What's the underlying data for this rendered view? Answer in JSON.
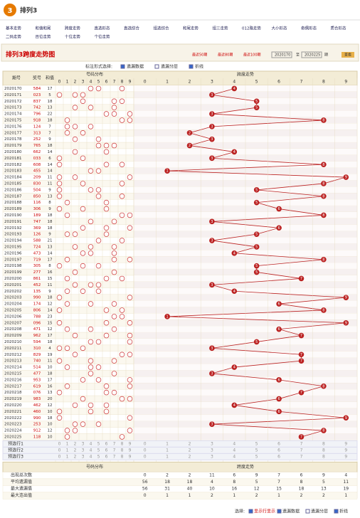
{
  "header": {
    "logo": "3",
    "title": "排列3"
  },
  "nav": [
    [
      "基本走势",
      "和值和尾",
      "跨度走势",
      "直选形态",
      "直选综合",
      "组选综合",
      "和尾走势",
      "组三走势",
      "012路走势",
      "大小形态",
      "奇偶形态",
      "质合形态"
    ],
    [
      "二码走势",
      "百位走势",
      "十位走势",
      "个位走势"
    ]
  ],
  "toolbar": {
    "title": "排列3跨度走势图",
    "links": [
      "最近50期",
      "最近80期",
      "最近100期"
    ],
    "from": "2020170",
    "to_label": "至",
    "to": "2020225",
    "unit": "期",
    "button": "查看"
  },
  "options": {
    "label": "标注形式选择:",
    "items": [
      "遗漏数据",
      "遗漏分层",
      "折线"
    ]
  },
  "chart_data": {
    "type": "table-trend",
    "headers": {
      "period": "期号",
      "number": "奖号",
      "sum": "和值",
      "dist": "号码分布",
      "span": "跨度走势"
    },
    "digits": [
      0,
      1,
      2,
      3,
      4,
      5,
      6,
      7,
      8,
      9
    ],
    "rows": [
      {
        "period": "2020170",
        "number": "584",
        "sum": 17,
        "span": 4
      },
      {
        "period": "2020171",
        "number": "023",
        "sum": 5,
        "span": 3
      },
      {
        "period": "2020172",
        "number": "837",
        "sum": 18,
        "span": 5
      },
      {
        "period": "2020173",
        "number": "742",
        "sum": 13,
        "span": 5
      },
      {
        "period": "2020174",
        "number": "796",
        "sum": 22,
        "span": 3
      },
      {
        "period": "2020175",
        "number": "918",
        "sum": 18,
        "span": 8
      },
      {
        "period": "2020176",
        "number": "124",
        "sum": 7,
        "span": 3
      },
      {
        "period": "2020177",
        "number": "313",
        "sum": 7,
        "span": 2
      },
      {
        "period": "2020178",
        "number": "252",
        "sum": 9,
        "span": 3
      },
      {
        "period": "2020179",
        "number": "765",
        "sum": 18,
        "span": 2
      },
      {
        "period": "2020180",
        "number": "662",
        "sum": 14,
        "span": 4
      },
      {
        "period": "2020181",
        "number": "033",
        "sum": 6,
        "span": 3
      },
      {
        "period": "2020182",
        "number": "608",
        "sum": 14,
        "span": 8
      },
      {
        "period": "2020183",
        "number": "455",
        "sum": 14,
        "span": 1
      },
      {
        "period": "2020184",
        "number": "209",
        "sum": 11,
        "span": 9
      },
      {
        "period": "2020185",
        "number": "830",
        "sum": 11,
        "span": 8
      },
      {
        "period": "2020186",
        "number": "504",
        "sum": 9,
        "span": 5
      },
      {
        "period": "2020187",
        "number": "850",
        "sum": 13,
        "span": 8
      },
      {
        "period": "2020188",
        "number": "116",
        "sum": 8,
        "span": 5
      },
      {
        "period": "2020189",
        "number": "306",
        "sum": 9,
        "span": 6
      },
      {
        "period": "2020190",
        "number": "189",
        "sum": 18,
        "span": 8
      },
      {
        "period": "2020191",
        "number": "747",
        "sum": 18,
        "span": 3
      },
      {
        "period": "2020192",
        "number": "369",
        "sum": 18,
        "span": 6
      },
      {
        "period": "2020193",
        "number": "126",
        "sum": 9,
        "span": 5
      },
      {
        "period": "2020194",
        "number": "588",
        "sum": 21,
        "span": 3
      },
      {
        "period": "2020195",
        "number": "724",
        "sum": 13,
        "span": 5
      },
      {
        "period": "2020196",
        "number": "473",
        "sum": 14,
        "span": 4
      },
      {
        "period": "2020197",
        "number": "719",
        "sum": 17,
        "span": 8
      },
      {
        "period": "2020198",
        "number": "305",
        "sum": 8,
        "span": 5
      },
      {
        "period": "2020199",
        "number": "277",
        "sum": 16,
        "span": 5
      },
      {
        "period": "2020200",
        "number": "861",
        "sum": 15,
        "span": 7
      },
      {
        "period": "2020201",
        "number": "452",
        "sum": 11,
        "span": 3
      },
      {
        "period": "2020202",
        "number": "135",
        "sum": 9,
        "span": 4
      },
      {
        "period": "2020203",
        "number": "990",
        "sum": 18,
        "span": 9
      },
      {
        "period": "2020204",
        "number": "174",
        "sum": 12,
        "span": 6
      },
      {
        "period": "2020205",
        "number": "806",
        "sum": 14,
        "span": 8
      },
      {
        "period": "2020206",
        "number": "788",
        "sum": 23,
        "span": 1
      },
      {
        "period": "2020207",
        "number": "096",
        "sum": 15,
        "span": 9
      },
      {
        "period": "2020208",
        "number": "471",
        "sum": 12,
        "span": 6
      },
      {
        "period": "2020209",
        "number": "962",
        "sum": 17,
        "span": 7
      },
      {
        "period": "2020210",
        "number": "594",
        "sum": 18,
        "span": 5
      },
      {
        "period": "2020211",
        "number": "310",
        "sum": 4,
        "span": 3
      },
      {
        "period": "2020212",
        "number": "829",
        "sum": 19,
        "span": 7
      },
      {
        "period": "2020213",
        "number": "740",
        "sum": 11,
        "span": 7
      },
      {
        "period": "2020214",
        "number": "514",
        "sum": 10,
        "span": 4
      },
      {
        "period": "2020215",
        "number": "477",
        "sum": 18,
        "span": 3
      },
      {
        "period": "2020216",
        "number": "953",
        "sum": 17,
        "span": 6
      },
      {
        "period": "2020217",
        "number": "619",
        "sum": 16,
        "span": 8
      },
      {
        "period": "2020218",
        "number": "076",
        "sum": 13,
        "span": 7
      },
      {
        "period": "2020219",
        "number": "983",
        "sum": 20,
        "span": 6
      },
      {
        "period": "2020220",
        "number": "462",
        "sum": 12,
        "span": 4
      },
      {
        "period": "2020221",
        "number": "460",
        "sum": 10,
        "span": 6
      },
      {
        "period": "2020222",
        "number": "990",
        "sum": 18,
        "span": 9
      },
      {
        "period": "2020223",
        "number": "253",
        "sum": 10,
        "span": 3
      },
      {
        "period": "2020224",
        "number": "912",
        "sum": 12,
        "span": 8
      },
      {
        "period": "2020225",
        "number": "118",
        "sum": 10,
        "span": 7
      }
    ],
    "preselect": [
      "预选行1",
      "预选行2",
      "预选行3"
    ],
    "stats": [
      {
        "label": "出现总次数",
        "values": [
          0,
          2,
          2,
          11,
          6,
          9,
          7,
          6,
          9,
          4
        ]
      },
      {
        "label": "平均遗漏值",
        "values": [
          56,
          18,
          18,
          4,
          8,
          5,
          7,
          8,
          5,
          11
        ]
      },
      {
        "label": "最大遗漏值",
        "values": [
          56,
          31,
          40,
          10,
          16,
          12,
          15,
          18,
          13,
          19
        ]
      },
      {
        "label": "最大连出值",
        "values": [
          0,
          1,
          1,
          2,
          1,
          2,
          1,
          2,
          2,
          1
        ]
      }
    ]
  },
  "footer": {
    "label": "选择:",
    "items": [
      "显示行显示",
      "遗漏数据",
      "遗漏分层",
      "折线"
    ]
  }
}
